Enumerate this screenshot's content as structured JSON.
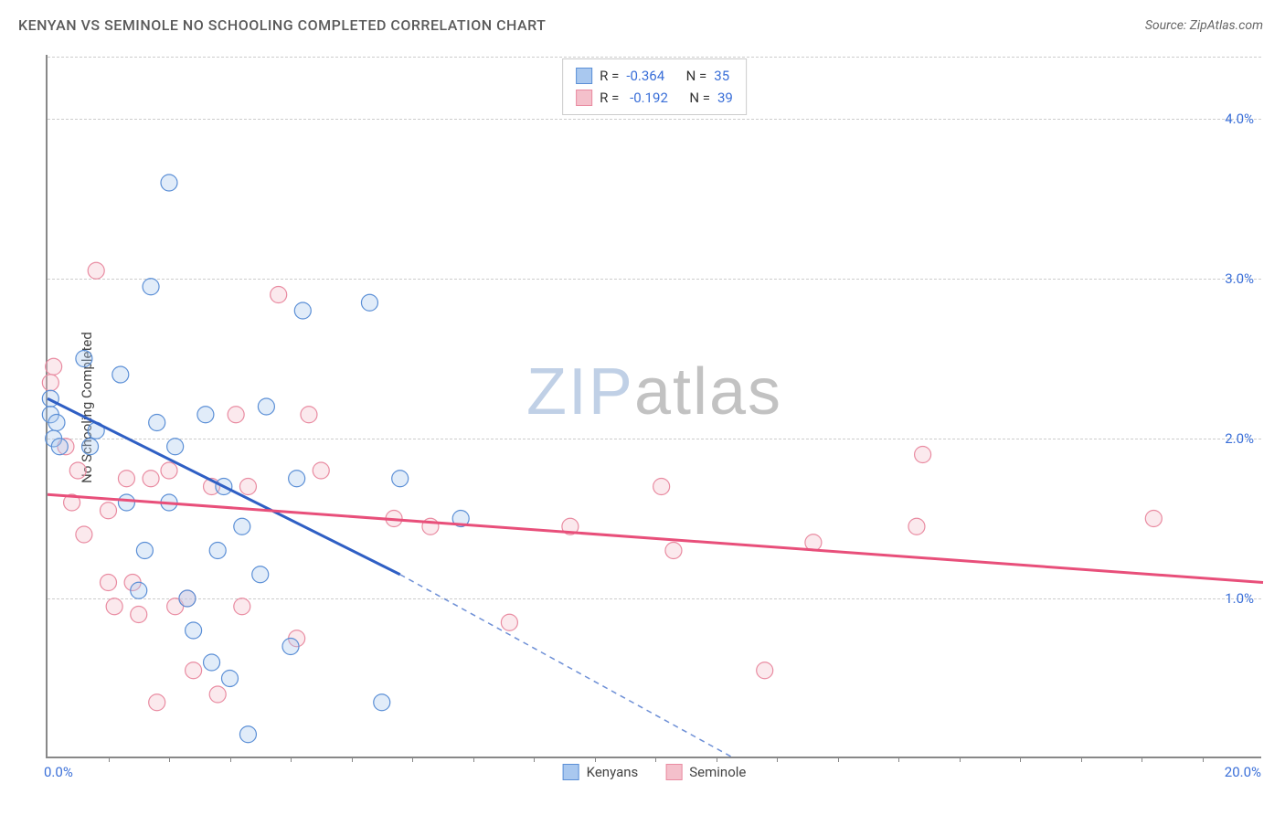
{
  "title": "KENYAN VS SEMINOLE NO SCHOOLING COMPLETED CORRELATION CHART",
  "source": "Source: ZipAtlas.com",
  "y_axis_label": "No Schooling Completed",
  "watermark": {
    "part1": "ZIP",
    "part2": "atlas"
  },
  "chart": {
    "type": "scatter",
    "xlim": [
      0,
      20
    ],
    "ylim": [
      0,
      4.4
    ],
    "x_ticks_minor": [
      1,
      2,
      3,
      4,
      5,
      6,
      7,
      8,
      9,
      10,
      11,
      12,
      13,
      14,
      15,
      16,
      17,
      18,
      19
    ],
    "x_tick_labels": {
      "min": "0.0%",
      "max": "20.0%"
    },
    "y_ticks": [
      {
        "value": 1.0,
        "label": "1.0%"
      },
      {
        "value": 2.0,
        "label": "2.0%"
      },
      {
        "value": 3.0,
        "label": "3.0%"
      },
      {
        "value": 4.0,
        "label": "4.0%"
      }
    ],
    "grid_color": "#cccccc",
    "axis_color": "#888888",
    "background_color": "#ffffff",
    "marker_radius": 9,
    "marker_stroke_width": 1.2,
    "marker_fill_opacity": 0.35,
    "series": [
      {
        "id": "kenyans",
        "label": "Kenyans",
        "fill": "#a9c8ef",
        "stroke": "#5b8fd6",
        "r_value": "-0.364",
        "n_value": "35",
        "trendline": {
          "color": "#2f5fc4",
          "width": 3,
          "solid": {
            "x1": 0.0,
            "y1": 2.25,
            "x2": 5.8,
            "y2": 1.15
          },
          "dashed": {
            "x1": 5.8,
            "y1": 1.15,
            "x2": 11.3,
            "y2": 0.0
          }
        },
        "points": [
          [
            0.05,
            2.25
          ],
          [
            0.05,
            2.15
          ],
          [
            0.1,
            2.0
          ],
          [
            0.15,
            2.1
          ],
          [
            0.2,
            1.95
          ],
          [
            0.6,
            2.5
          ],
          [
            0.7,
            1.95
          ],
          [
            0.8,
            2.05
          ],
          [
            1.2,
            2.4
          ],
          [
            1.3,
            1.6
          ],
          [
            1.5,
            1.05
          ],
          [
            1.6,
            1.3
          ],
          [
            1.7,
            2.95
          ],
          [
            1.8,
            2.1
          ],
          [
            2.0,
            3.6
          ],
          [
            2.0,
            1.6
          ],
          [
            2.1,
            1.95
          ],
          [
            2.3,
            1.0
          ],
          [
            2.4,
            0.8
          ],
          [
            2.6,
            2.15
          ],
          [
            2.7,
            0.6
          ],
          [
            2.8,
            1.3
          ],
          [
            2.9,
            1.7
          ],
          [
            3.0,
            0.5
          ],
          [
            3.2,
            1.45
          ],
          [
            3.3,
            0.15
          ],
          [
            3.5,
            1.15
          ],
          [
            3.6,
            2.2
          ],
          [
            4.0,
            0.7
          ],
          [
            4.1,
            1.75
          ],
          [
            4.2,
            2.8
          ],
          [
            5.3,
            2.85
          ],
          [
            5.5,
            0.35
          ],
          [
            5.8,
            1.75
          ],
          [
            6.8,
            1.5
          ]
        ]
      },
      {
        "id": "seminole",
        "label": "Seminole",
        "fill": "#f4c0cb",
        "stroke": "#e98ba1",
        "r_value": "-0.192",
        "n_value": "39",
        "trendline": {
          "color": "#e84f7a",
          "width": 3,
          "solid": {
            "x1": 0.0,
            "y1": 1.65,
            "x2": 20.0,
            "y2": 1.1
          }
        },
        "points": [
          [
            0.05,
            2.35
          ],
          [
            0.1,
            2.45
          ],
          [
            0.3,
            1.95
          ],
          [
            0.4,
            1.6
          ],
          [
            0.5,
            1.8
          ],
          [
            0.6,
            1.4
          ],
          [
            0.8,
            3.05
          ],
          [
            1.0,
            1.55
          ],
          [
            1.0,
            1.1
          ],
          [
            1.1,
            0.95
          ],
          [
            1.3,
            1.75
          ],
          [
            1.4,
            1.1
          ],
          [
            1.5,
            0.9
          ],
          [
            1.7,
            1.75
          ],
          [
            1.8,
            0.35
          ],
          [
            2.0,
            1.8
          ],
          [
            2.1,
            0.95
          ],
          [
            2.3,
            1.0
          ],
          [
            2.4,
            0.55
          ],
          [
            2.7,
            1.7
          ],
          [
            2.8,
            0.4
          ],
          [
            3.1,
            2.15
          ],
          [
            3.2,
            0.95
          ],
          [
            3.3,
            1.7
          ],
          [
            3.8,
            2.9
          ],
          [
            4.1,
            0.75
          ],
          [
            4.3,
            2.15
          ],
          [
            4.5,
            1.8
          ],
          [
            5.7,
            1.5
          ],
          [
            6.3,
            1.45
          ],
          [
            7.6,
            0.85
          ],
          [
            8.6,
            1.45
          ],
          [
            10.1,
            1.7
          ],
          [
            10.3,
            1.3
          ],
          [
            11.8,
            0.55
          ],
          [
            12.6,
            1.35
          ],
          [
            14.3,
            1.45
          ],
          [
            14.4,
            1.9
          ],
          [
            18.2,
            1.5
          ]
        ]
      }
    ]
  },
  "stats_box": {
    "r_label": "R =",
    "n_label": "N ="
  },
  "legend_labels": {
    "kenyans": "Kenyans",
    "seminole": "Seminole"
  }
}
